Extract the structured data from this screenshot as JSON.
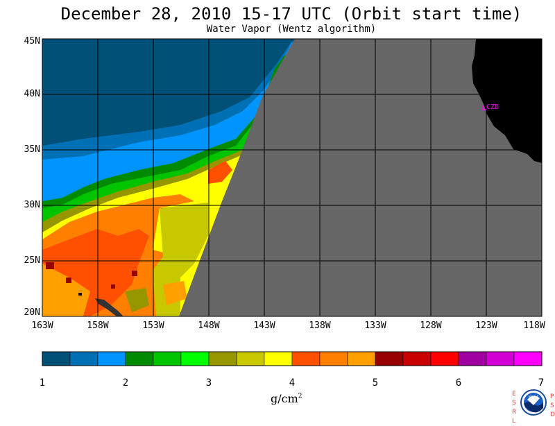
{
  "title": "December 28, 2010  15-17 UTC  (Orbit start time)",
  "subtitle": "Water Vapor (Wentz algorithm)",
  "map": {
    "lat_labels": [
      "45N",
      "40N",
      "35N",
      "30N",
      "25N",
      "20N"
    ],
    "lon_labels": [
      "163W",
      "158W",
      "153W",
      "148W",
      "143W",
      "138W",
      "133W",
      "128W",
      "123W",
      "118W"
    ],
    "station_label": "CZD",
    "colors": {
      "nodata": "#666666",
      "land": "#000000",
      "grid": "#000000",
      "station": "#ff00ff"
    }
  },
  "colorbar": {
    "colors": [
      "#005078",
      "#0070b4",
      "#0094ff",
      "#008a00",
      "#00c400",
      "#00ff00",
      "#969600",
      "#c8c800",
      "#ffff00",
      "#ff5000",
      "#ff8000",
      "#ffa000",
      "#960000",
      "#c80000",
      "#ff0000",
      "#a000a0",
      "#d200d2",
      "#ff00ff"
    ],
    "ticks": [
      "1",
      "2",
      "3",
      "4",
      "5",
      "6",
      "7"
    ],
    "units": "g/cm",
    "units_sup": "2"
  },
  "logo": {
    "left_letters": "ESRL",
    "right_letters": "PSD",
    "text": "NOAA"
  }
}
